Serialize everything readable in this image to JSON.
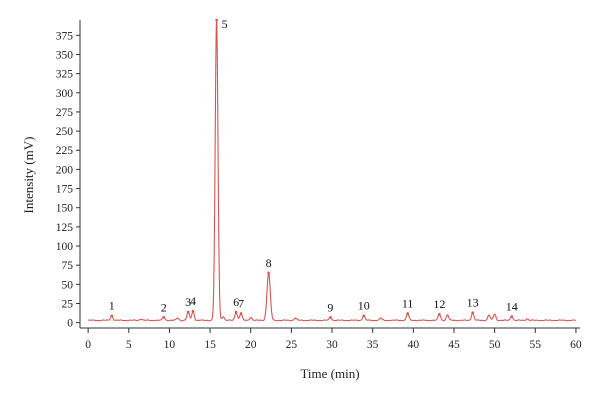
{
  "chart_data": {
    "type": "line",
    "title": "",
    "xlabel": "Time (min)",
    "ylabel": "Intensity (mV)",
    "xlim": [
      -1,
      60.5
    ],
    "ylim": [
      -7,
      395
    ],
    "x_ticks": [
      0,
      5,
      10,
      15,
      20,
      25,
      30,
      35,
      40,
      45,
      50,
      55,
      60
    ],
    "y_ticks": [
      0,
      25,
      50,
      75,
      100,
      125,
      150,
      175,
      200,
      225,
      250,
      275,
      300,
      325,
      350,
      375
    ],
    "line_color": "#d9534f",
    "grid": false,
    "baseline": 3,
    "peaks": [
      {
        "label": "1",
        "x": 2.9,
        "y": 9
      },
      {
        "label": "2",
        "x": 9.3,
        "y": 7
      },
      {
        "label": "3",
        "x": 12.3,
        "y": 14
      },
      {
        "label": "4",
        "x": 12.9,
        "y": 15
      },
      {
        "label": "5",
        "x": 15.8,
        "y": 395
      },
      {
        "label": "6",
        "x": 18.2,
        "y": 14
      },
      {
        "label": "7",
        "x": 18.8,
        "y": 12
      },
      {
        "label": "8",
        "x": 22.2,
        "y": 65
      },
      {
        "label": "9",
        "x": 29.8,
        "y": 7
      },
      {
        "label": "10",
        "x": 33.9,
        "y": 9
      },
      {
        "label": "11",
        "x": 39.3,
        "y": 12
      },
      {
        "label": "12",
        "x": 43.2,
        "y": 11
      },
      {
        "label": "13",
        "x": 47.3,
        "y": 13
      },
      {
        "label": "14",
        "x": 52.1,
        "y": 8
      }
    ],
    "minor_peaks": [
      {
        "x": 6.5,
        "y": 5
      },
      {
        "x": 11.0,
        "y": 6
      },
      {
        "x": 16.6,
        "y": 8
      },
      {
        "x": 20.0,
        "y": 7
      },
      {
        "x": 25.5,
        "y": 6
      },
      {
        "x": 36.0,
        "y": 6
      },
      {
        "x": 44.2,
        "y": 10
      },
      {
        "x": 49.3,
        "y": 10
      },
      {
        "x": 50.0,
        "y": 11
      },
      {
        "x": 54.0,
        "y": 5
      }
    ]
  }
}
